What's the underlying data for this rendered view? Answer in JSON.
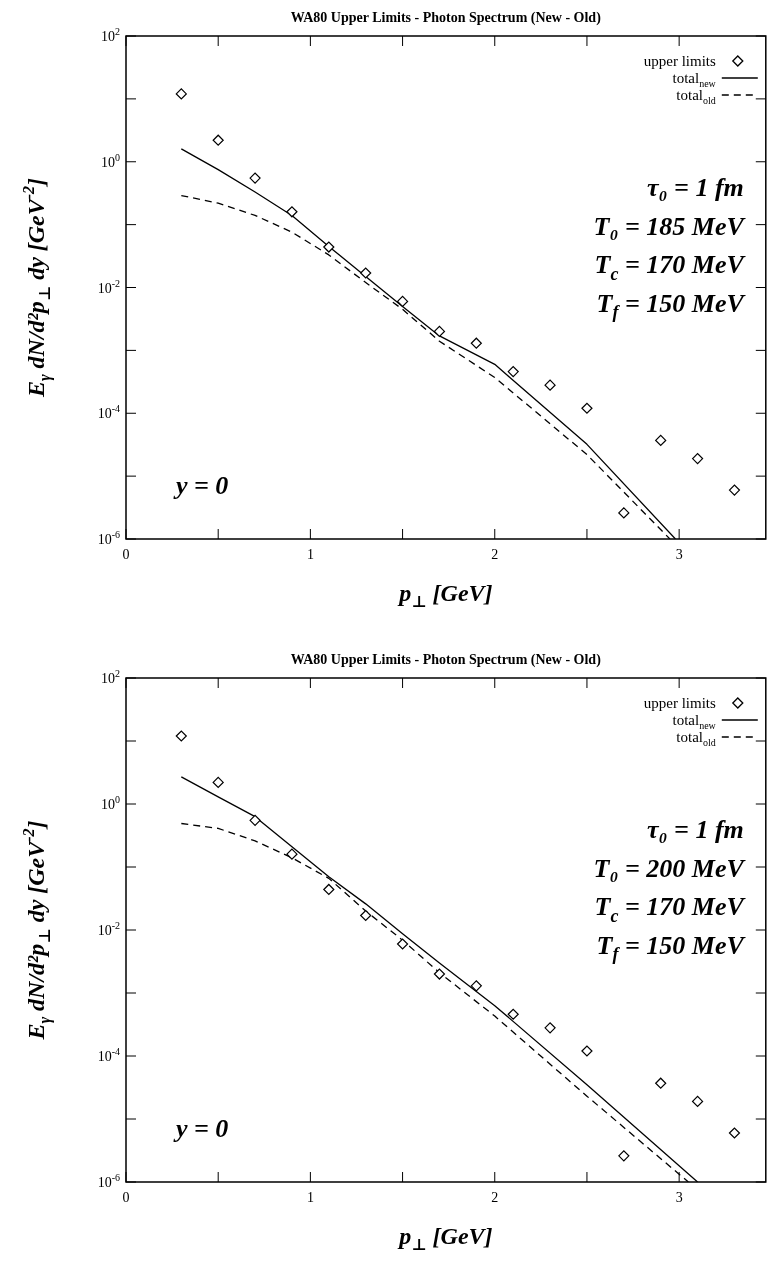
{
  "chart_data": [
    {
      "type": "line",
      "title": "WA80 Upper Limits - Photon Spectrum (New - Old)",
      "xlabel": "p$_{⊥}$ [GeV]",
      "ylabel": "E$_{γ}$ dN/d²p$_{⊥}$ dy [GeV$^{-2}$]",
      "log": "y",
      "legend": "top right",
      "xlim": [
        0,
        3.47
      ],
      "ylim": [
        1e-06,
        100
      ],
      "xticks": [
        0,
        {
          "value": 0.5,
          "label": null
        },
        1,
        {
          "value": 1.5,
          "label": null
        },
        2,
        {
          "value": 2.5,
          "label": null
        },
        3
      ],
      "yticks": [
        {
          "value": 100,
          "label": "10$^{2}$"
        },
        {
          "value": 10,
          "label": null
        },
        {
          "value": 1,
          "label": "10$^{0}$"
        },
        {
          "value": 0.1,
          "label": null
        },
        {
          "value": 0.01,
          "label": "10$^{-2}$"
        },
        {
          "value": 0.001,
          "label": null
        },
        {
          "value": 0.0001,
          "label": "10$^{-4}$"
        },
        {
          "value": 1e-05,
          "label": null
        },
        {
          "value": 1e-06,
          "label": "10$^{-6}$"
        }
      ],
      "annotations": [
        "τ₀ = 1 fm",
        "T₀ = 185 MeV",
        "T$_{c}$ = 170 MeV",
        "T$_{f}$ = 150 MeV",
        "y = 0"
      ],
      "series": [
        {
          "name": "upper limits",
          "type": "scatter",
          "marker": "diamond",
          "color": "#000000",
          "x": [
            0.3,
            0.5,
            0.7,
            0.9,
            1.1,
            1.3,
            1.5,
            1.7,
            1.9,
            2.1,
            2.3,
            2.5,
            2.7,
            2.9,
            3.1,
            3.3
          ],
          "values": [
            12,
            2.2,
            0.55,
            0.16,
            0.044,
            0.017,
            0.006,
            0.002,
            0.0013,
            0.00046,
            0.00028,
            0.00012,
            2.6e-06,
            3.7e-05,
            1.9e-05,
            6e-06
          ]
        },
        {
          "name": "total$_{new}$",
          "type": "line",
          "marker": "none",
          "line_style": "solid",
          "color": "#000000",
          "x": [
            0.3,
            0.5,
            0.7,
            0.9,
            1.1,
            1.3,
            1.5,
            1.7,
            2.0,
            2.5,
            2.98
          ],
          "values": [
            1.6,
            0.75,
            0.33,
            0.14,
            0.045,
            0.015,
            0.005,
            0.0017,
            0.0006,
            3.2e-05,
            1e-06
          ]
        },
        {
          "name": "total$_{old}$",
          "type": "line",
          "marker": "none",
          "line_style": "dashed",
          "color": "#000000",
          "x": [
            0.3,
            0.5,
            0.7,
            0.9,
            1.1,
            1.3,
            1.5,
            1.7,
            2.0,
            2.5,
            2.95
          ],
          "values": [
            0.29,
            0.22,
            0.14,
            0.076,
            0.033,
            0.012,
            0.0045,
            0.0014,
            0.00037,
            2.2e-05,
            1e-06
          ]
        }
      ]
    },
    {
      "type": "line",
      "title": "WA80 Upper Limits - Photon Spectrum (New - Old)",
      "xlabel": "p$_{⊥}$ [GeV]",
      "ylabel": "E$_{γ}$ dN/d²p$_{⊥}$ dy [GeV$^{-2}$]",
      "log": "y",
      "legend": "top right",
      "xlim": [
        0,
        3.47
      ],
      "ylim": [
        1e-06,
        100
      ],
      "xticks": [
        0,
        {
          "value": 0.5,
          "label": null
        },
        1,
        {
          "value": 1.5,
          "label": null
        },
        2,
        {
          "value": 2.5,
          "label": null
        },
        3
      ],
      "yticks": [
        {
          "value": 100,
          "label": "10$^{2}$"
        },
        {
          "value": 10,
          "label": null
        },
        {
          "value": 1,
          "label": "10$^{0}$"
        },
        {
          "value": 0.1,
          "label": null
        },
        {
          "value": 0.01,
          "label": "10$^{-2}$"
        },
        {
          "value": 0.001,
          "label": null
        },
        {
          "value": 0.0001,
          "label": "10$^{-4}$"
        },
        {
          "value": 1e-05,
          "label": null
        },
        {
          "value": 1e-06,
          "label": "10$^{-6}$"
        }
      ],
      "annotations": [
        "τ₀ = 1 fm",
        "T₀ = 200 MeV",
        "T$_{c}$ = 170 MeV",
        "T$_{f}$ = 150 MeV",
        "y = 0"
      ],
      "series": [
        {
          "name": "upper limits",
          "type": "scatter",
          "marker": "diamond",
          "color": "#000000",
          "x": [
            0.3,
            0.5,
            0.7,
            0.9,
            1.1,
            1.3,
            1.5,
            1.7,
            1.9,
            2.1,
            2.3,
            2.5,
            2.7,
            2.9,
            3.1,
            3.3
          ],
          "values": [
            12,
            2.2,
            0.55,
            0.16,
            0.044,
            0.017,
            0.006,
            0.002,
            0.0013,
            0.00046,
            0.00028,
            0.00012,
            2.6e-06,
            3.7e-05,
            1.9e-05,
            6e-06
          ]
        },
        {
          "name": "total$_{new}$",
          "type": "line",
          "marker": "none",
          "line_style": "solid",
          "color": "#000000",
          "x": [
            0.3,
            0.5,
            0.7,
            0.9,
            1.1,
            1.3,
            1.5,
            1.7,
            2.0,
            2.5,
            3.1
          ],
          "values": [
            2.7,
            1.3,
            0.63,
            0.21,
            0.07,
            0.026,
            0.0087,
            0.003,
            0.00063,
            3.5e-05,
            1e-06
          ]
        },
        {
          "name": "total$_{old}$",
          "type": "line",
          "marker": "none",
          "line_style": "dashed",
          "color": "#000000",
          "x": [
            0.3,
            0.5,
            0.7,
            0.9,
            1.1,
            1.3,
            1.5,
            1.7,
            2.0,
            2.5,
            3.05
          ],
          "values": [
            0.49,
            0.41,
            0.26,
            0.14,
            0.066,
            0.02,
            0.0069,
            0.0021,
            0.00043,
            2.3e-05,
            1e-06
          ]
        }
      ]
    }
  ]
}
